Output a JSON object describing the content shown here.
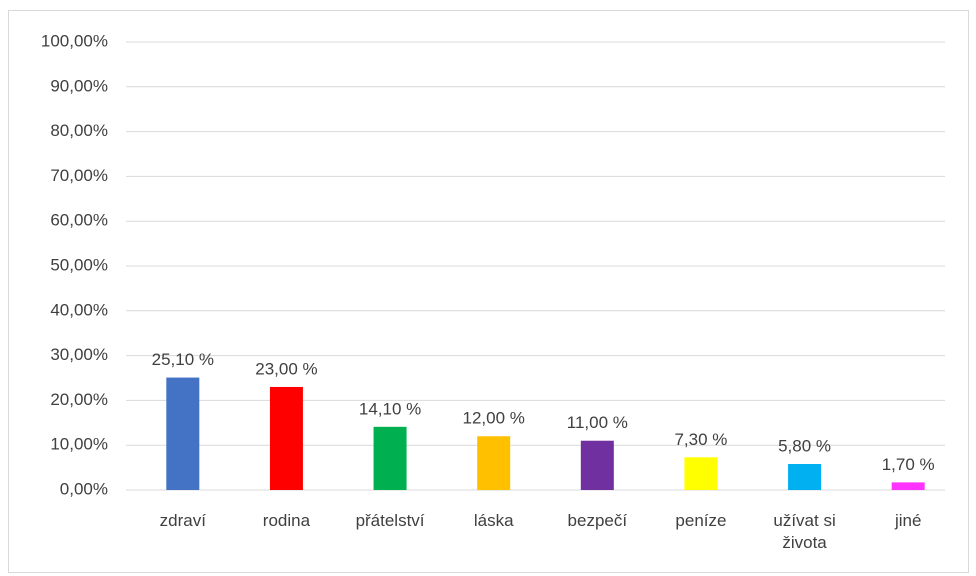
{
  "chart_data": {
    "type": "bar",
    "categories": [
      "zdraví",
      "rodina",
      "přátelství",
      "láska",
      "bezpečí",
      "peníze",
      "užívat si života",
      "jiné"
    ],
    "values": [
      25.1,
      23,
      14.1,
      12,
      11,
      7.3,
      5.8,
      1.7
    ],
    "value_labels": [
      "25,10 %",
      "23,00 %",
      "14,10 %",
      "12,00 %",
      "11,00 %",
      "7,30 %",
      "5,80 %",
      "1,70 %"
    ],
    "colors": [
      "#4472c4",
      "#ff0000",
      "#00b050",
      "#ffc000",
      "#7030a0",
      "#ffff00",
      "#00b0f0",
      "#ff33ff"
    ],
    "ylim": [
      0,
      100
    ],
    "yticks": [
      {
        "value": 0,
        "label": "0,00%"
      },
      {
        "value": 10,
        "label": "10,00%"
      },
      {
        "value": 20,
        "label": "20,00%"
      },
      {
        "value": 30,
        "label": "30,00%"
      },
      {
        "value": 40,
        "label": "40,00%"
      },
      {
        "value": 50,
        "label": "50,00%"
      },
      {
        "value": 60,
        "label": "60,00%"
      },
      {
        "value": 70,
        "label": "70,00%"
      },
      {
        "value": 80,
        "label": "80,00%"
      },
      {
        "value": 90,
        "label": "90,00%"
      },
      {
        "value": 100,
        "label": "100,00%"
      }
    ],
    "grid": true
  }
}
